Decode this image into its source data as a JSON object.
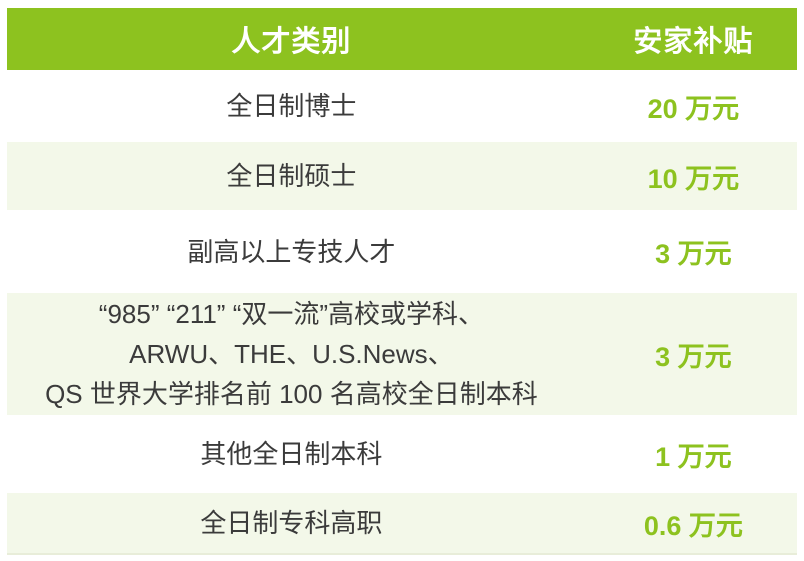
{
  "table": {
    "header": {
      "category": "人才类别",
      "subsidy": "安家补贴"
    },
    "rows": [
      {
        "category": [
          "全日制博士"
        ],
        "subsidy": "20 万元"
      },
      {
        "category": [
          "全日制硕士"
        ],
        "subsidy": "10 万元"
      },
      {
        "category": [
          "副高以上专技人才"
        ],
        "subsidy": "3 万元"
      },
      {
        "category": [
          "“985” “211” “双一流”高校或学科、",
          "ARWU、THE、U.S.News、",
          "QS 世界大学排名前 100 名高校全日制本科"
        ],
        "subsidy": "3 万元"
      },
      {
        "category": [
          "其他全日制本科"
        ],
        "subsidy": "1 万元"
      },
      {
        "category": [
          "全日制专科高职"
        ],
        "subsidy": "0.6 万元"
      }
    ]
  },
  "chart_data": {
    "type": "table",
    "title": "",
    "columns": [
      "人才类别",
      "安家补贴"
    ],
    "rows": [
      [
        "全日制博士",
        "20 万元"
      ],
      [
        "全日制硕士",
        "10 万元"
      ],
      [
        "副高以上专技人才",
        "3 万元"
      ],
      [
        "“985” “211” “双一流”高校或学科、ARWU、THE、U.S.News、QS 世界大学排名前 100 名高校全日制本科",
        "3 万元"
      ],
      [
        "其他全日制本科",
        "1 万元"
      ],
      [
        "全日制专科高职",
        "0.6 万元"
      ]
    ],
    "subsidy_values_wan_yuan": [
      20,
      10,
      3,
      3,
      1,
      0.6
    ],
    "layout_hints": {
      "striped": true,
      "header_filled": true
    }
  },
  "colors": {
    "header_bg": "#8DC21F",
    "header_text": "#FFFFFF",
    "row_bg": "#FFFFFF",
    "row_alt_bg": "#F3F8E9",
    "subsidy_text": "#8DC21F",
    "category_text": "#3B3B3B",
    "bottom_edge": "#E8EDD9"
  }
}
